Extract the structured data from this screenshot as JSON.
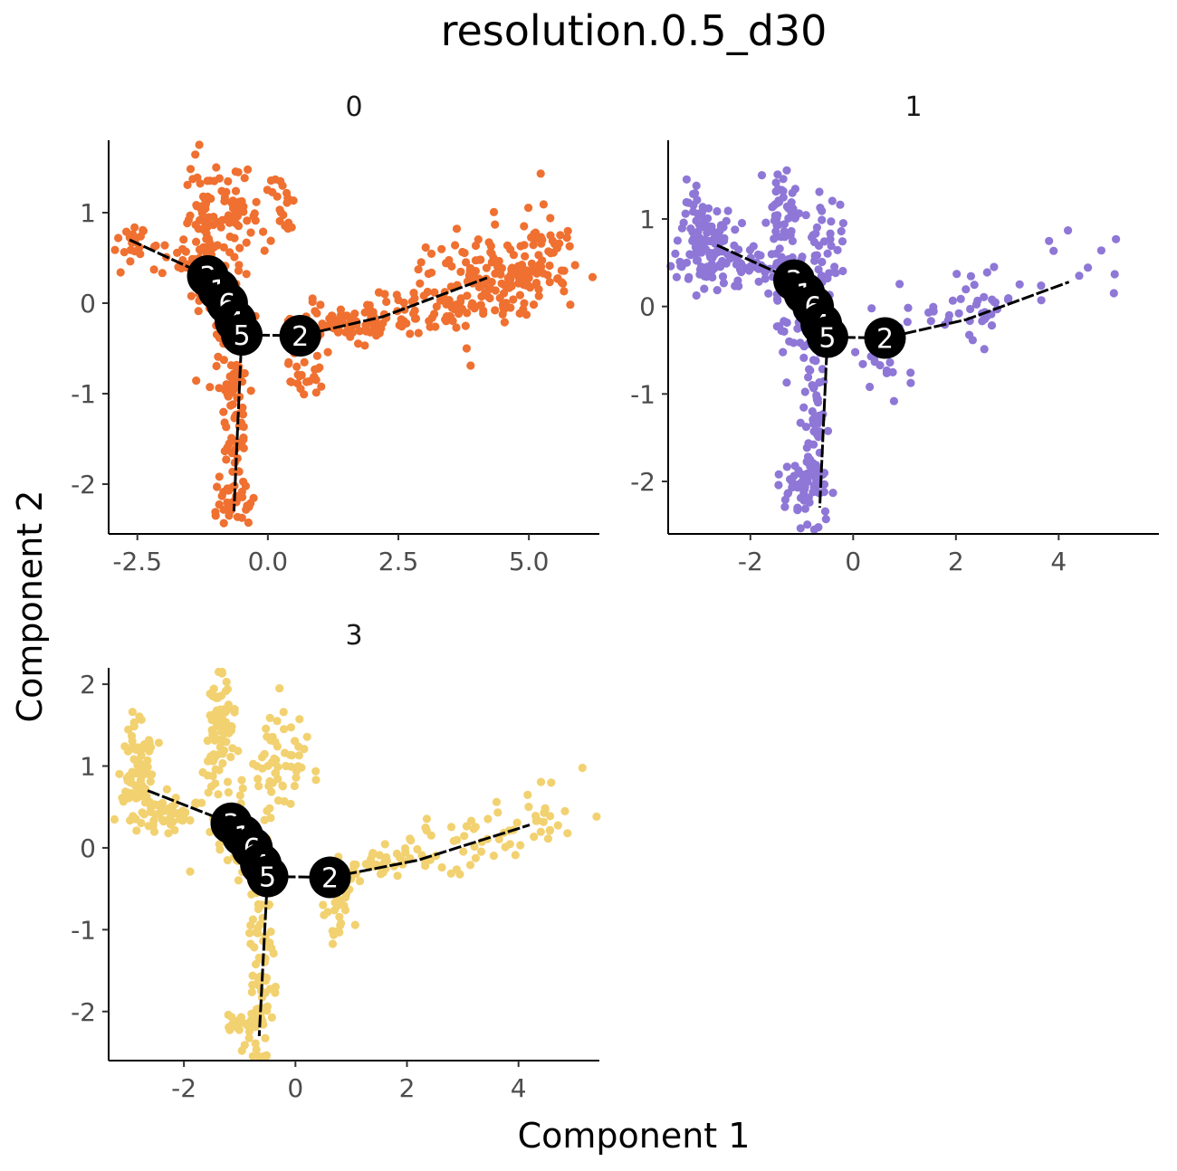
{
  "chart_data": {
    "type": "scatter",
    "title": "resolution.0.5_d30",
    "xlabel": "Component 1",
    "ylabel": "Component 2",
    "grid": false,
    "legend": "none",
    "node_color": "#000000",
    "node_label_color": "#ffffff",
    "trajectory_color": "#000000",
    "branch_nodes": [
      {
        "label": "3",
        "x": -1.15,
        "y": 0.3
      },
      {
        "label": "1",
        "x": -0.95,
        "y": 0.15
      },
      {
        "label": "6",
        "x": -0.78,
        "y": 0.0
      },
      {
        "label": "4",
        "x": -0.62,
        "y": -0.2
      },
      {
        "label": "5",
        "x": -0.5,
        "y": -0.35
      },
      {
        "label": "2",
        "x": 0.62,
        "y": -0.36
      }
    ],
    "trajectory": [
      [
        [
          -2.65,
          0.7
        ],
        [
          -1.15,
          0.3
        ],
        [
          -0.95,
          0.15
        ],
        [
          -0.78,
          0.0
        ],
        [
          -0.62,
          -0.2
        ],
        [
          -0.5,
          -0.35
        ]
      ],
      [
        [
          -0.5,
          -0.35
        ],
        [
          -0.65,
          -2.3
        ]
      ],
      [
        [
          -0.5,
          -0.35
        ],
        [
          0.62,
          -0.36
        ],
        [
          2.2,
          -0.15
        ],
        [
          4.2,
          0.28
        ]
      ]
    ],
    "panels": [
      {
        "strip": "0",
        "color": "#ef7030",
        "xlim": [
          -3.05,
          6.35
        ],
        "ylim": [
          -2.55,
          1.8
        ],
        "xticks": [
          -2.5,
          0.0,
          2.5,
          5.0
        ],
        "xtick_labels": [
          "-2.5",
          "0.0",
          "2.5",
          "5.0"
        ],
        "yticks": [
          -2,
          -1,
          0,
          1
        ],
        "ytick_labels": [
          "-2",
          "-1",
          "0",
          "1"
        ],
        "clusters": [
          {
            "x": -2.6,
            "y": 0.7,
            "sx": 0.15,
            "sy": 0.12,
            "n": 20
          },
          {
            "x": -1.5,
            "y": 0.45,
            "sx": 0.5,
            "sy": 0.12,
            "n": 25
          },
          {
            "x": -1.25,
            "y": 1.05,
            "sx": 0.18,
            "sy": 0.35,
            "n": 60
          },
          {
            "x": -0.55,
            "y": 0.95,
            "sx": 0.22,
            "sy": 0.3,
            "n": 55
          },
          {
            "x": 0.2,
            "y": 1.1,
            "sx": 0.15,
            "sy": 0.2,
            "n": 20
          },
          {
            "x": -0.9,
            "y": 0.0,
            "sx": 0.25,
            "sy": 0.3,
            "n": 45
          },
          {
            "x": -0.65,
            "y": -1.2,
            "sx": 0.12,
            "sy": 0.55,
            "n": 80
          },
          {
            "x": -0.7,
            "y": -2.2,
            "sx": 0.2,
            "sy": 0.12,
            "n": 30
          },
          {
            "x": 0.75,
            "y": -0.7,
            "sx": 0.2,
            "sy": 0.3,
            "n": 40
          },
          {
            "x": 1.5,
            "y": -0.2,
            "sx": 0.5,
            "sy": 0.08,
            "n": 70
          },
          {
            "x": 3.0,
            "y": -0.05,
            "sx": 0.6,
            "sy": 0.2,
            "n": 60
          },
          {
            "x": 4.3,
            "y": 0.3,
            "sx": 0.6,
            "sy": 0.25,
            "n": 150
          },
          {
            "x": 5.2,
            "y": 0.55,
            "sx": 0.5,
            "sy": 0.3,
            "n": 40
          }
        ]
      },
      {
        "strip": "1",
        "color": "#8e77d6",
        "xlim": [
          -3.6,
          5.95
        ],
        "ylim": [
          -2.6,
          1.9
        ],
        "xticks": [
          -2,
          0,
          2,
          4
        ],
        "xtick_labels": [
          "-2",
          "0",
          "2",
          "4"
        ],
        "yticks": [
          -2,
          -1,
          0,
          1
        ],
        "ytick_labels": [
          "-2",
          "-1",
          "0",
          "1"
        ],
        "clusters": [
          {
            "x": -2.9,
            "y": 0.7,
            "sx": 0.25,
            "sy": 0.3,
            "n": 110
          },
          {
            "x": -2.0,
            "y": 0.45,
            "sx": 0.45,
            "sy": 0.12,
            "n": 50
          },
          {
            "x": -1.35,
            "y": 1.0,
            "sx": 0.15,
            "sy": 0.35,
            "n": 55
          },
          {
            "x": -0.55,
            "y": 0.7,
            "sx": 0.2,
            "sy": 0.3,
            "n": 35
          },
          {
            "x": -1.1,
            "y": 0.0,
            "sx": 0.3,
            "sy": 0.3,
            "n": 50
          },
          {
            "x": -0.7,
            "y": -1.3,
            "sx": 0.12,
            "sy": 0.5,
            "n": 60
          },
          {
            "x": -0.9,
            "y": -2.1,
            "sx": 0.25,
            "sy": 0.2,
            "n": 60
          },
          {
            "x": 0.6,
            "y": -0.5,
            "sx": 0.25,
            "sy": 0.2,
            "n": 30
          },
          {
            "x": 2.2,
            "y": 0.0,
            "sx": 0.6,
            "sy": 0.2,
            "n": 40
          },
          {
            "x": 4.4,
            "y": 0.4,
            "sx": 0.5,
            "sy": 0.25,
            "n": 12
          }
        ]
      },
      {
        "strip": "3",
        "color": "#f2d170",
        "xlim": [
          -3.35,
          5.45
        ],
        "ylim": [
          -2.6,
          2.2
        ],
        "xticks": [
          -2,
          0,
          2,
          4
        ],
        "xtick_labels": [
          "-2",
          "0",
          "2",
          "4"
        ],
        "yticks": [
          -2,
          -1,
          0,
          1,
          2
        ],
        "ytick_labels": [
          "-2",
          "-1",
          "0",
          "1",
          "2"
        ],
        "clusters": [
          {
            "x": -2.85,
            "y": 0.95,
            "sx": 0.15,
            "sy": 0.3,
            "n": 90
          },
          {
            "x": -2.1,
            "y": 0.45,
            "sx": 0.4,
            "sy": 0.12,
            "n": 45
          },
          {
            "x": -1.35,
            "y": 1.45,
            "sx": 0.15,
            "sy": 0.3,
            "n": 90
          },
          {
            "x": -0.3,
            "y": 1.05,
            "sx": 0.25,
            "sy": 0.3,
            "n": 60
          },
          {
            "x": -1.0,
            "y": 0.0,
            "sx": 0.3,
            "sy": 0.3,
            "n": 50
          },
          {
            "x": -0.65,
            "y": -1.5,
            "sx": 0.12,
            "sy": 0.6,
            "n": 70
          },
          {
            "x": -0.85,
            "y": -2.2,
            "sx": 0.2,
            "sy": 0.1,
            "n": 25
          },
          {
            "x": 0.75,
            "y": -0.7,
            "sx": 0.15,
            "sy": 0.25,
            "n": 30
          },
          {
            "x": 1.8,
            "y": -0.2,
            "sx": 0.5,
            "sy": 0.1,
            "n": 50
          },
          {
            "x": 3.4,
            "y": 0.15,
            "sx": 0.6,
            "sy": 0.15,
            "n": 40
          },
          {
            "x": 4.6,
            "y": 0.5,
            "sx": 0.4,
            "sy": 0.2,
            "n": 15
          }
        ]
      }
    ]
  }
}
